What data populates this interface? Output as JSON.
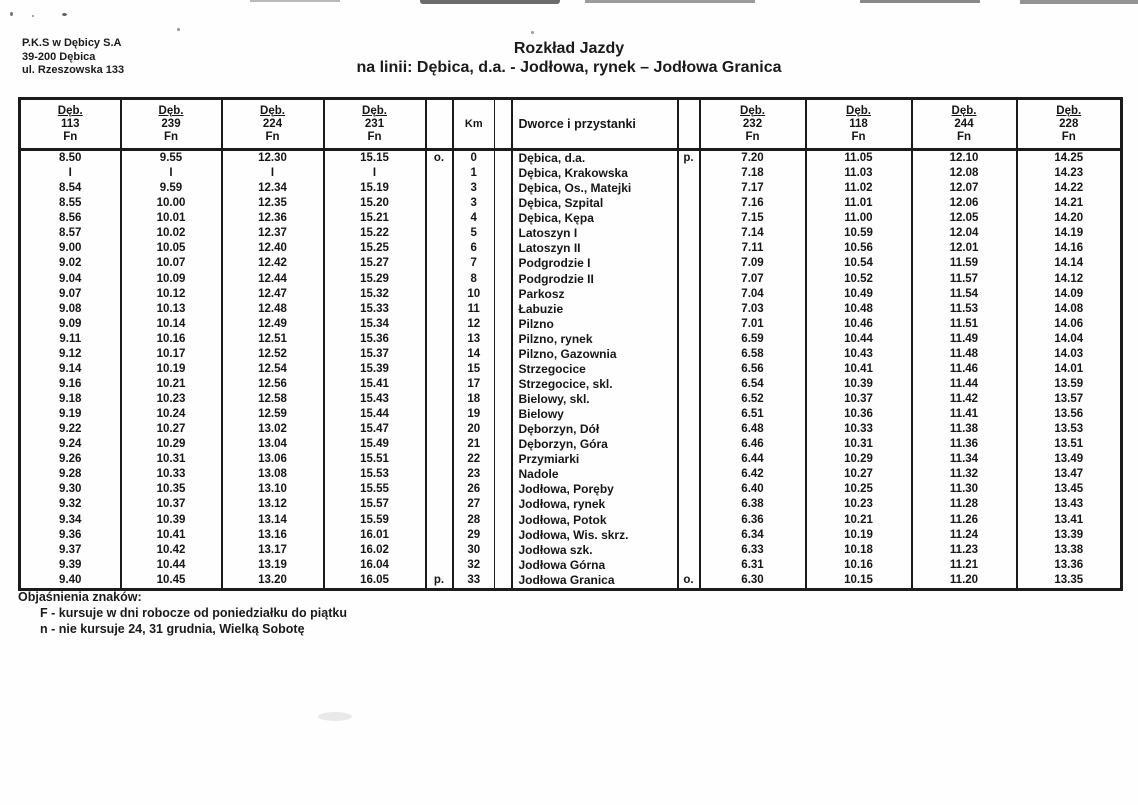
{
  "letterhead": {
    "company": "P.K.S w Dębicy S.A",
    "postal": "39-200 Dębica",
    "street": "ul. Rzeszowska 133"
  },
  "title": "Rozkład Jazdy",
  "subtitle": "na linii: Dębica, d.a. - Jodłowa, rynek – Jodłowa Granica",
  "table": {
    "km_label": "Km",
    "stops_label": "Dworce i przystanki",
    "left_courses": [
      {
        "origin": "Dęb.",
        "number": "113",
        "symbols": "Fn"
      },
      {
        "origin": "Dęb.",
        "number": "239",
        "symbols": "Fn"
      },
      {
        "origin": "Dęb.",
        "number": "224",
        "symbols": "Fn"
      },
      {
        "origin": "Dęb.",
        "number": "231",
        "symbols": "Fn"
      }
    ],
    "right_courses": [
      {
        "origin": "Dęb.",
        "number": "232",
        "symbols": "Fn"
      },
      {
        "origin": "Dęb.",
        "number": "118",
        "symbols": "Fn"
      },
      {
        "origin": "Dęb.",
        "number": "244",
        "symbols": "Fn"
      },
      {
        "origin": "Dęb.",
        "number": "228",
        "symbols": "Fn"
      }
    ],
    "rows": [
      {
        "times_left": [
          "8.50",
          "9.55",
          "12.30",
          "15.15"
        ],
        "mark_left": "o.",
        "km": "0",
        "stop": "Dębica, d.a.",
        "mark_right": "p.",
        "times_right": [
          "7.20",
          "11.05",
          "12.10",
          "14.25"
        ]
      },
      {
        "times_left": [
          "I",
          "I",
          "I",
          "I"
        ],
        "mark_left": "",
        "km": "1",
        "stop": "Dębica, Krakowska",
        "mark_right": "",
        "times_right": [
          "7.18",
          "11.03",
          "12.08",
          "14.23"
        ]
      },
      {
        "times_left": [
          "8.54",
          "9.59",
          "12.34",
          "15.19"
        ],
        "mark_left": "",
        "km": "3",
        "stop": "Dębica, Os., Matejki",
        "mark_right": "",
        "times_right": [
          "7.17",
          "11.02",
          "12.07",
          "14.22"
        ]
      },
      {
        "times_left": [
          "8.55",
          "10.00",
          "12.35",
          "15.20"
        ],
        "mark_left": "",
        "km": "3",
        "stop": "Dębica, Szpital",
        "mark_right": "",
        "times_right": [
          "7.16",
          "11.01",
          "12.06",
          "14.21"
        ]
      },
      {
        "times_left": [
          "8.56",
          "10.01",
          "12.36",
          "15.21"
        ],
        "mark_left": "",
        "km": "4",
        "stop": "Dębica, Kępa",
        "mark_right": "",
        "times_right": [
          "7.15",
          "11.00",
          "12.05",
          "14.20"
        ]
      },
      {
        "times_left": [
          "8.57",
          "10.02",
          "12.37",
          "15.22"
        ],
        "mark_left": "",
        "km": "5",
        "stop": "Latoszyn I",
        "mark_right": "",
        "times_right": [
          "7.14",
          "10.59",
          "12.04",
          "14.19"
        ]
      },
      {
        "times_left": [
          "9.00",
          "10.05",
          "12.40",
          "15.25"
        ],
        "mark_left": "",
        "km": "6",
        "stop": "Latoszyn II",
        "mark_right": "",
        "times_right": [
          "7.11",
          "10.56",
          "12.01",
          "14.16"
        ]
      },
      {
        "times_left": [
          "9.02",
          "10.07",
          "12.42",
          "15.27"
        ],
        "mark_left": "",
        "km": "7",
        "stop": "Podgrodzie I",
        "mark_right": "",
        "times_right": [
          "7.09",
          "10.54",
          "11.59",
          "14.14"
        ]
      },
      {
        "times_left": [
          "9.04",
          "10.09",
          "12.44",
          "15.29"
        ],
        "mark_left": "",
        "km": "8",
        "stop": "Podgrodzie II",
        "mark_right": "",
        "times_right": [
          "7.07",
          "10.52",
          "11.57",
          "14.12"
        ]
      },
      {
        "times_left": [
          "9.07",
          "10.12",
          "12.47",
          "15.32"
        ],
        "mark_left": "",
        "km": "10",
        "stop": "Parkosz",
        "mark_right": "",
        "times_right": [
          "7.04",
          "10.49",
          "11.54",
          "14.09"
        ]
      },
      {
        "times_left": [
          "9.08",
          "10.13",
          "12.48",
          "15.33"
        ],
        "mark_left": "",
        "km": "11",
        "stop": "Łabuzie",
        "mark_right": "",
        "times_right": [
          "7.03",
          "10.48",
          "11.53",
          "14.08"
        ]
      },
      {
        "times_left": [
          "9.09",
          "10.14",
          "12.49",
          "15.34"
        ],
        "mark_left": "",
        "km": "12",
        "stop": "Pilzno",
        "mark_right": "",
        "times_right": [
          "7.01",
          "10.46",
          "11.51",
          "14.06"
        ]
      },
      {
        "times_left": [
          "9.11",
          "10.16",
          "12.51",
          "15.36"
        ],
        "mark_left": "",
        "km": "13",
        "stop": "Pilzno, rynek",
        "mark_right": "",
        "times_right": [
          "6.59",
          "10.44",
          "11.49",
          "14.04"
        ]
      },
      {
        "times_left": [
          "9.12",
          "10.17",
          "12.52",
          "15.37"
        ],
        "mark_left": "",
        "km": "14",
        "stop": "Pilzno, Gazownia",
        "mark_right": "",
        "times_right": [
          "6.58",
          "10.43",
          "11.48",
          "14.03"
        ]
      },
      {
        "times_left": [
          "9.14",
          "10.19",
          "12.54",
          "15.39"
        ],
        "mark_left": "",
        "km": "15",
        "stop": "Strzegocice",
        "mark_right": "",
        "times_right": [
          "6.56",
          "10.41",
          "11.46",
          "14.01"
        ]
      },
      {
        "times_left": [
          "9.16",
          "10.21",
          "12.56",
          "15.41"
        ],
        "mark_left": "",
        "km": "17",
        "stop": "Strzegocice, skl.",
        "mark_right": "",
        "times_right": [
          "6.54",
          "10.39",
          "11.44",
          "13.59"
        ]
      },
      {
        "times_left": [
          "9.18",
          "10.23",
          "12.58",
          "15.43"
        ],
        "mark_left": "",
        "km": "18",
        "stop": "Bielowy, skl.",
        "mark_right": "",
        "times_right": [
          "6.52",
          "10.37",
          "11.42",
          "13.57"
        ]
      },
      {
        "times_left": [
          "9.19",
          "10.24",
          "12.59",
          "15.44"
        ],
        "mark_left": "",
        "km": "19",
        "stop": "Bielowy",
        "mark_right": "",
        "times_right": [
          "6.51",
          "10.36",
          "11.41",
          "13.56"
        ]
      },
      {
        "times_left": [
          "9.22",
          "10.27",
          "13.02",
          "15.47"
        ],
        "mark_left": "",
        "km": "20",
        "stop": "Dęborzyn, Dół",
        "mark_right": "",
        "times_right": [
          "6.48",
          "10.33",
          "11.38",
          "13.53"
        ]
      },
      {
        "times_left": [
          "9.24",
          "10.29",
          "13.04",
          "15.49"
        ],
        "mark_left": "",
        "km": "21",
        "stop": "Dęborzyn, Góra",
        "mark_right": "",
        "times_right": [
          "6.46",
          "10.31",
          "11.36",
          "13.51"
        ]
      },
      {
        "times_left": [
          "9.26",
          "10.31",
          "13.06",
          "15.51"
        ],
        "mark_left": "",
        "km": "22",
        "stop": "Przymiarki",
        "mark_right": "",
        "times_right": [
          "6.44",
          "10.29",
          "11.34",
          "13.49"
        ]
      },
      {
        "times_left": [
          "9.28",
          "10.33",
          "13.08",
          "15.53"
        ],
        "mark_left": "",
        "km": "23",
        "stop": "Nadole",
        "mark_right": "",
        "times_right": [
          "6.42",
          "10.27",
          "11.32",
          "13.47"
        ]
      },
      {
        "times_left": [
          "9.30",
          "10.35",
          "13.10",
          "15.55"
        ],
        "mark_left": "",
        "km": "26",
        "stop": "Jodłowa, Poręby",
        "mark_right": "",
        "times_right": [
          "6.40",
          "10.25",
          "11.30",
          "13.45"
        ]
      },
      {
        "times_left": [
          "9.32",
          "10.37",
          "13.12",
          "15.57"
        ],
        "mark_left": "",
        "km": "27",
        "stop": "Jodłowa, rynek",
        "mark_right": "",
        "times_right": [
          "6.38",
          "10.23",
          "11.28",
          "13.43"
        ]
      },
      {
        "times_left": [
          "9.34",
          "10.39",
          "13.14",
          "15.59"
        ],
        "mark_left": "",
        "km": "28",
        "stop": "Jodłowa, Potok",
        "mark_right": "",
        "times_right": [
          "6.36",
          "10.21",
          "11.26",
          "13.41"
        ]
      },
      {
        "times_left": [
          "9.36",
          "10.41",
          "13.16",
          "16.01"
        ],
        "mark_left": "",
        "km": "29",
        "stop": "Jodłowa, Wis. skrz.",
        "mark_right": "",
        "times_right": [
          "6.34",
          "10.19",
          "11.24",
          "13.39"
        ]
      },
      {
        "times_left": [
          "9.37",
          "10.42",
          "13.17",
          "16.02"
        ],
        "mark_left": "",
        "km": "30",
        "stop": "Jodłowa szk.",
        "mark_right": "",
        "times_right": [
          "6.33",
          "10.18",
          "11.23",
          "13.38"
        ]
      },
      {
        "times_left": [
          "9.39",
          "10.44",
          "13.19",
          "16.04"
        ],
        "mark_left": "",
        "km": "32",
        "stop": "Jodłowa Górna",
        "mark_right": "",
        "times_right": [
          "6.31",
          "10.16",
          "11.21",
          "13.36"
        ]
      },
      {
        "times_left": [
          "9.40",
          "10.45",
          "13.20",
          "16.05"
        ],
        "mark_left": "p.",
        "km": "33",
        "stop": "Jodłowa Granica",
        "mark_right": "o.",
        "times_right": [
          "6.30",
          "10.15",
          "11.20",
          "13.35"
        ]
      }
    ]
  },
  "legend": {
    "heading": "Objaśnienia znaków:",
    "items": [
      "F - kursuje w dni robocze od poniedziałku do piątku",
      "n - nie kursuje 24, 31 grudnia, Wielką Sobotę"
    ]
  }
}
